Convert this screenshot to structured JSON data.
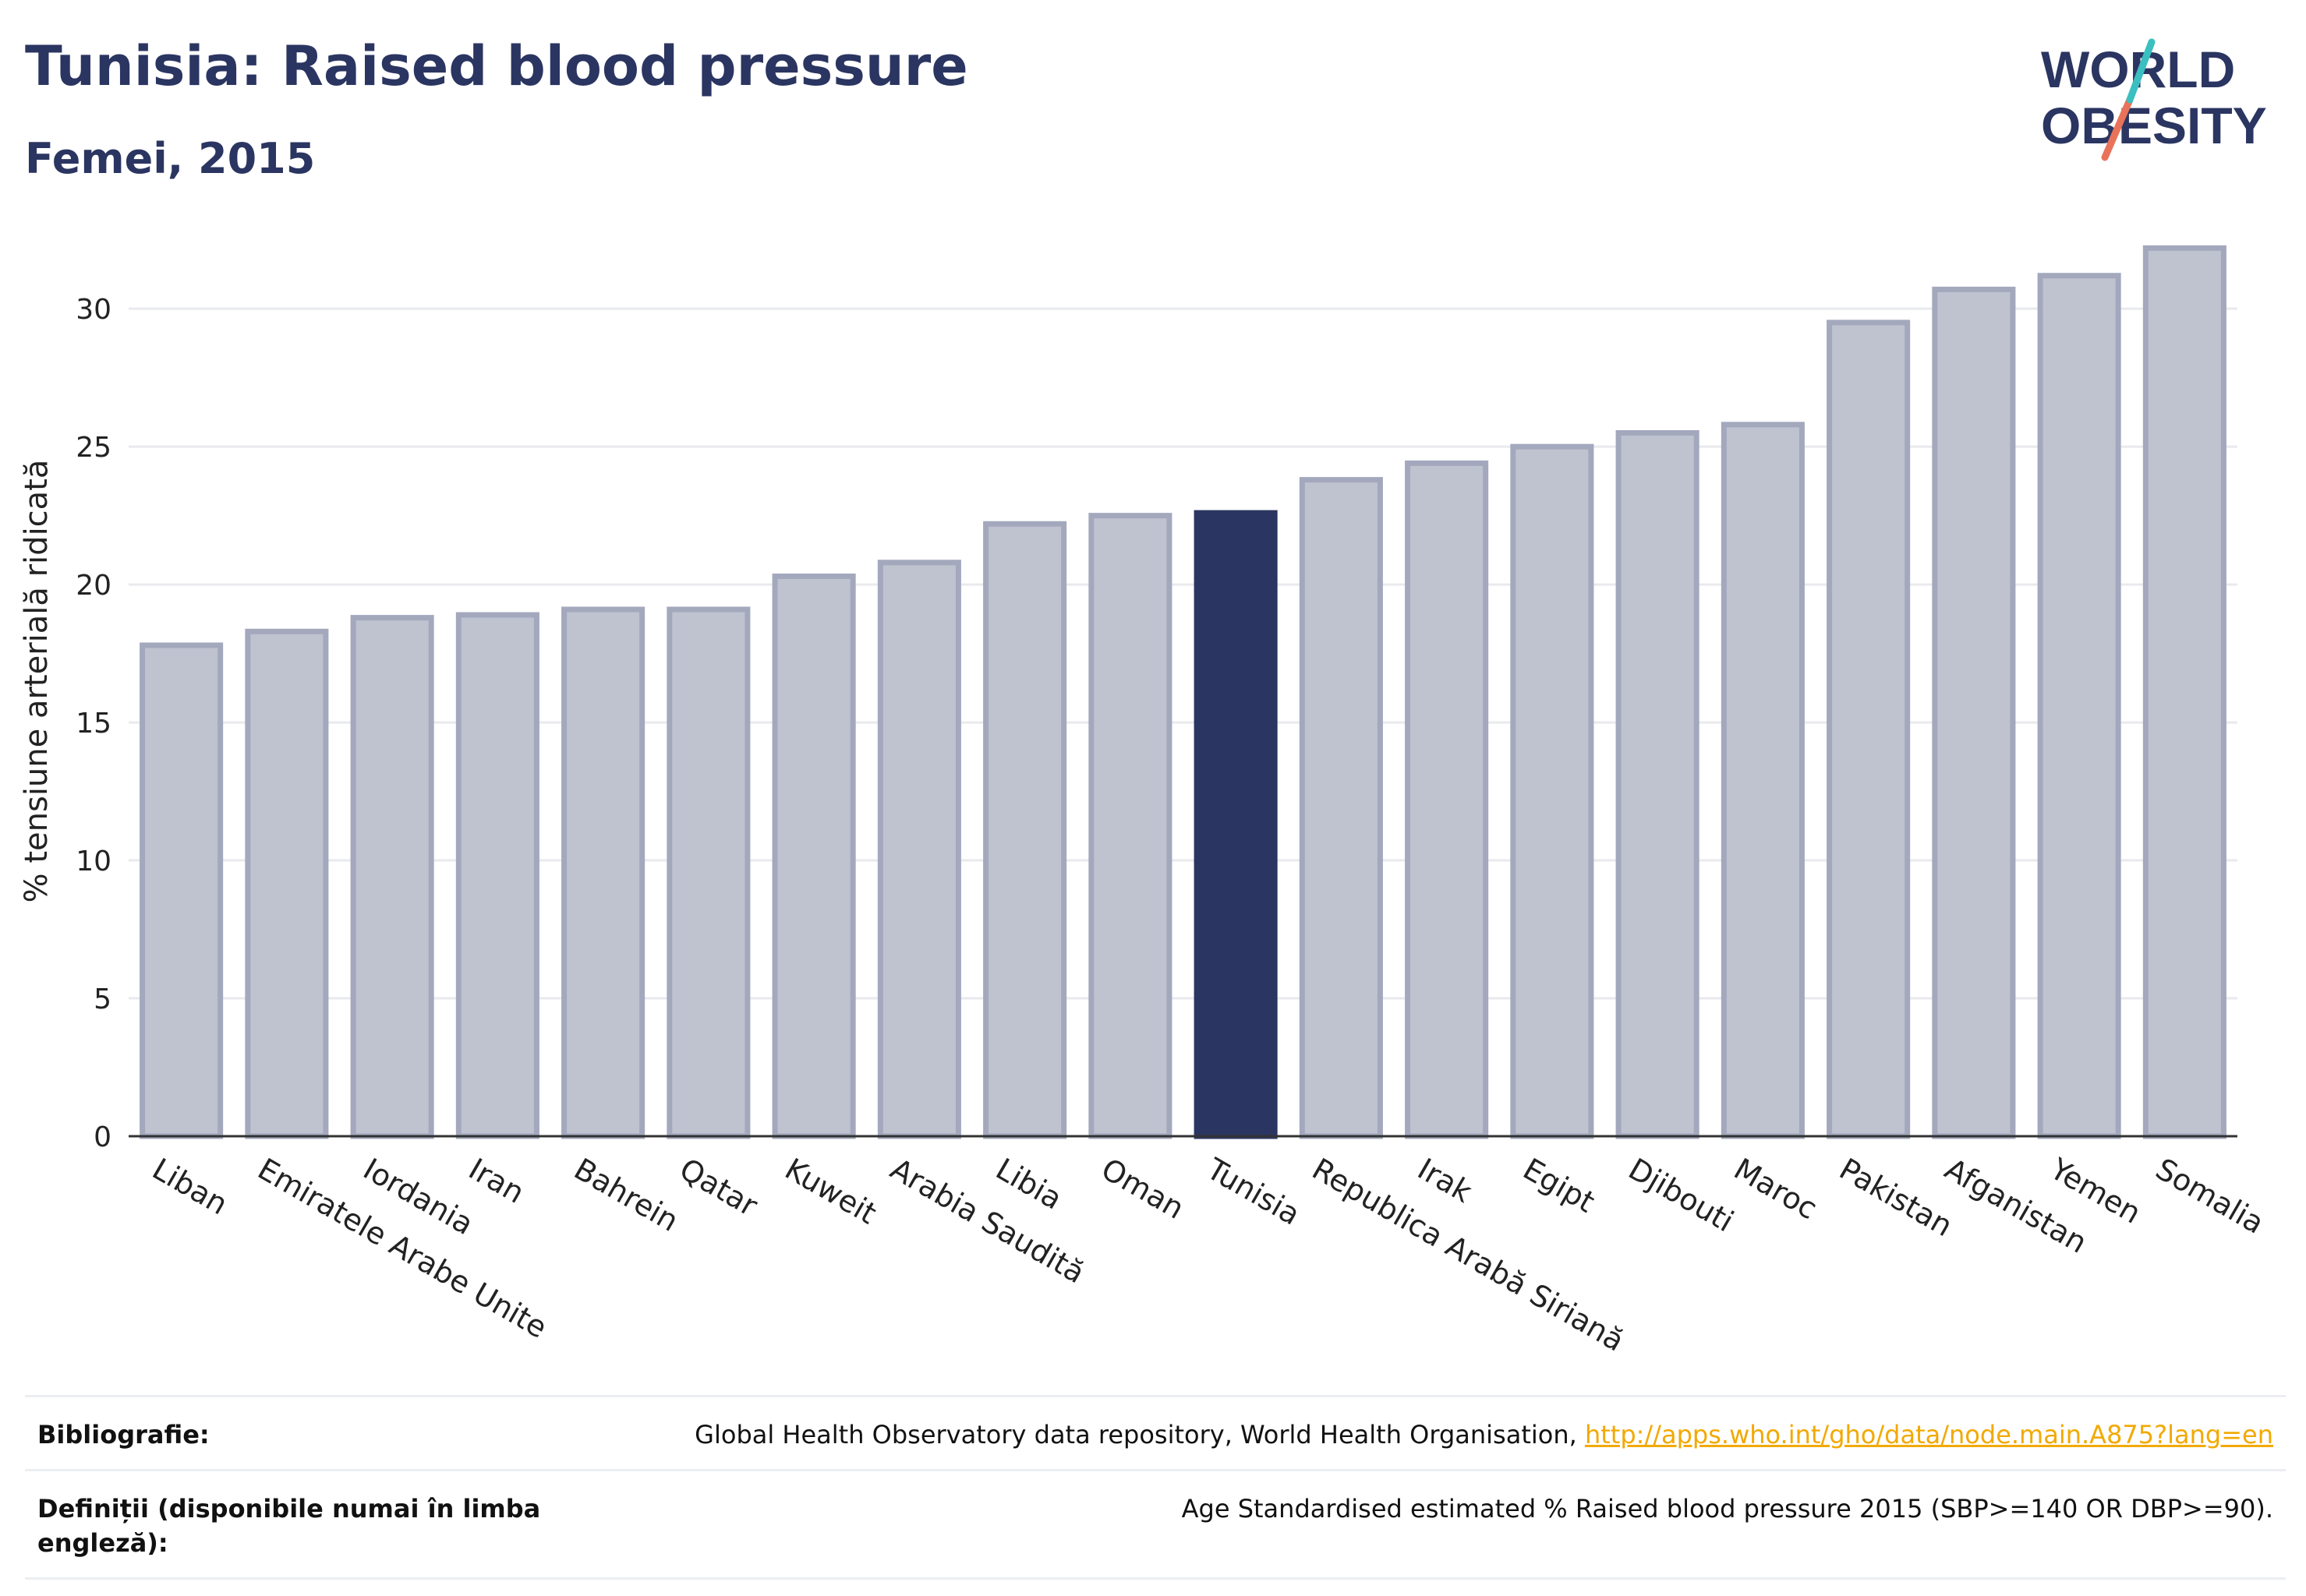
{
  "header": {
    "title": "Tunisia: Raised blood pressure",
    "subtitle": "Femei, 2015"
  },
  "logo": {
    "line1": "WORLD",
    "line2": "OBESITY"
  },
  "chart_data": {
    "type": "bar",
    "ylabel": "% tensiune arterială ridicată",
    "xlabel": "",
    "ylim": [
      0,
      33
    ],
    "yticks": [
      0,
      5,
      10,
      15,
      20,
      25,
      30
    ],
    "grid": true,
    "highlight": "Tunisia",
    "categories": [
      "Liban",
      "Emiratele Arabe Unite",
      "Iordania",
      "Iran",
      "Bahrein",
      "Qatar",
      "Kuweit",
      "Arabia Saudită",
      "Libia",
      "Oman",
      "Tunisia",
      "Republica Arabă Siriană",
      "Irak",
      "Egipt",
      "Djibouti",
      "Maroc",
      "Pakistan",
      "Afganistan",
      "Yemen",
      "Somalia"
    ],
    "values": [
      17.8,
      18.3,
      18.8,
      18.9,
      19.1,
      19.1,
      20.3,
      20.8,
      22.2,
      22.5,
      22.6,
      23.8,
      24.4,
      25.0,
      25.5,
      25.8,
      29.5,
      30.7,
      31.2,
      32.2
    ],
    "colors": {
      "bar": "#bfc2cf",
      "bar_border": "#a3a8bd",
      "highlight": "#2b3561"
    }
  },
  "footer": {
    "bibliography_label": "Bibliografie:",
    "bibliography_text": "Global Health Observatory data repository, World Health Organisation, ",
    "bibliography_link": "http://apps.who.int/gho/data/node.main.A875?lang=en",
    "definitions_label": "Definiții (disponibile numai în limba engleză):",
    "definitions_text": "Age Standardised estimated % Raised blood pressure 2015 (SBP>=140 OR DBP>=90)."
  }
}
